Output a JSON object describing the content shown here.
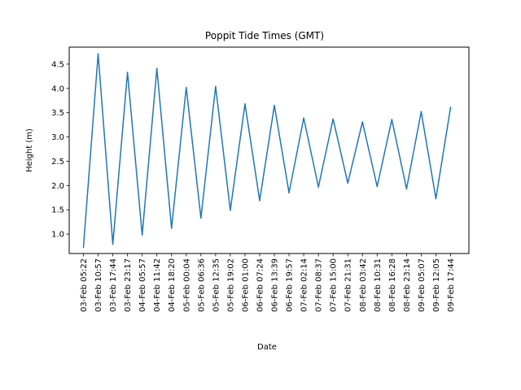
{
  "chart_data": {
    "type": "line",
    "title": "Poppit Tide Times (GMT)",
    "xlabel": "Date",
    "ylabel": "Height (m)",
    "ylim": [
      0.6,
      4.85
    ],
    "yticks": [
      "1.0",
      "1.5",
      "2.0",
      "2.5",
      "3.0",
      "3.5",
      "4.0",
      "4.5"
    ],
    "grid": false,
    "line_color": "#1f77b4",
    "categories": [
      "03-Feb 05:22",
      "03-Feb 10:57",
      "03-Feb 17:44",
      "03-Feb 23:17",
      "04-Feb 05:57",
      "04-Feb 11:42",
      "04-Feb 18:20",
      "05-Feb 00:04",
      "05-Feb 06:36",
      "05-Feb 12:35",
      "05-Feb 19:02",
      "06-Feb 01:00",
      "06-Feb 07:24",
      "06-Feb 13:39",
      "06-Feb 19:57",
      "07-Feb 02:14",
      "07-Feb 08:37",
      "07-Feb 15:00",
      "07-Feb 21:31",
      "08-Feb 03:42",
      "08-Feb 10:31",
      "08-Feb 16:28",
      "08-Feb 23:14",
      "09-Feb 05:07",
      "09-Feb 12:05",
      "09-Feb 17:44"
    ],
    "series": [
      {
        "values": [
          0.73,
          4.71,
          0.79,
          4.33,
          0.98,
          4.41,
          1.12,
          4.02,
          1.33,
          4.04,
          1.49,
          3.68,
          1.69,
          3.65,
          1.85,
          3.39,
          1.97,
          3.37,
          2.05,
          3.31,
          1.98,
          3.36,
          1.93,
          3.52,
          1.73,
          3.61
        ]
      }
    ]
  }
}
